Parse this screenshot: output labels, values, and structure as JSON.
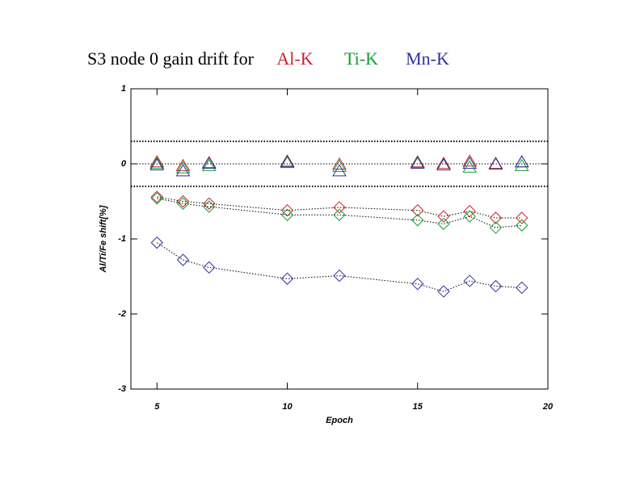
{
  "chart_data": {
    "type": "scatter",
    "title": "S3 node 0 gain drift for",
    "x_label": "Epoch",
    "y_label": "Al/Ti/Fe shift[%]",
    "x": [
      5,
      6,
      7,
      10,
      12,
      15,
      16,
      17,
      18,
      19
    ],
    "series": [
      {
        "name": "Al-K",
        "color": "#d0202a",
        "triangles": [
          0.02,
          -0.03,
          0.01,
          0.03,
          -0.01,
          0.02,
          0,
          0.03,
          0,
          0.02
        ],
        "diamonds": [
          -0.44,
          -0.5,
          -0.53,
          -0.62,
          -0.58,
          -0.62,
          -0.7,
          -0.63,
          -0.72,
          -0.72
        ]
      },
      {
        "name": "Ti-K",
        "color": "#10a030",
        "triangles": [
          0,
          -0.06,
          -0.03,
          0.01,
          -0.04,
          0.01,
          -0.02,
          -0.05,
          -0.01,
          -0.03
        ],
        "diamonds": [
          -0.46,
          -0.53,
          -0.57,
          -0.68,
          -0.68,
          -0.75,
          -0.8,
          -0.7,
          -0.85,
          -0.82
        ]
      },
      {
        "name": "Mn-K",
        "color": "#3030a0",
        "triangles": [
          -0.02,
          -0.1,
          0,
          0.02,
          -0.1,
          0,
          -0.02,
          0,
          -0.01,
          0.02
        ],
        "diamonds": [
          -1.05,
          -1.28,
          -1.38,
          -1.53,
          -1.49,
          -1.6,
          -1.7,
          -1.56,
          -1.63,
          -1.65
        ]
      }
    ],
    "reference_lines": [
      0.3,
      0,
      -0.3
    ],
    "xlim": [
      4,
      20
    ],
    "xticks": [
      5,
      10,
      15,
      20
    ],
    "ylim": [
      -3,
      1
    ],
    "yticks": [
      1,
      0,
      -1,
      -2,
      -3
    ]
  }
}
